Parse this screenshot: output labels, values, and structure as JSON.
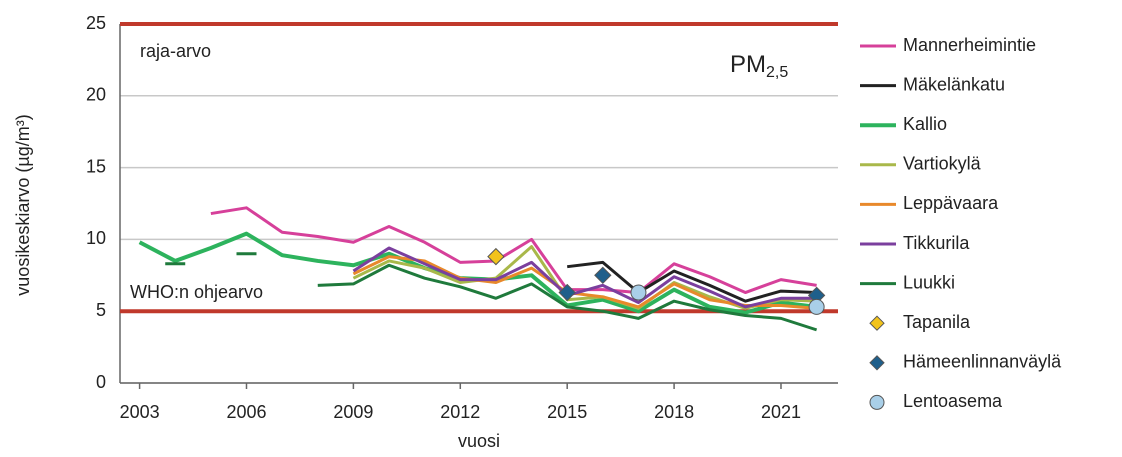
{
  "chart_data": {
    "type": "line",
    "x_label": "vuosi",
    "y_label": "vuosikeskiarvo (µg/m³)",
    "annotation": {
      "text": "PM",
      "subscript": "2,5"
    },
    "reference_lines": [
      {
        "label": "raja-arvo",
        "value": 25,
        "color": "#c0392b"
      },
      {
        "label": "WHO:n ohjearvo",
        "value": 5,
        "color": "#c0392b"
      }
    ],
    "x": [
      2003,
      2004,
      2005,
      2006,
      2007,
      2008,
      2009,
      2010,
      2011,
      2012,
      2013,
      2014,
      2015,
      2016,
      2017,
      2018,
      2019,
      2020,
      2021,
      2022
    ],
    "xlim": [
      2002.45,
      2022.6
    ],
    "xticks": [
      2003,
      2006,
      2009,
      2012,
      2015,
      2018,
      2021
    ],
    "ylim": [
      0,
      25
    ],
    "yticks": [
      0,
      5,
      10,
      15,
      20,
      25
    ],
    "grid": true,
    "legend": "right",
    "series": [
      {
        "name": "Mannerheimintie",
        "color": "#d6409a",
        "line_width": 3,
        "values": [
          null,
          null,
          11.8,
          12.2,
          10.5,
          10.2,
          9.8,
          10.9,
          9.8,
          8.4,
          8.5,
          10.0,
          6.5,
          6.5,
          6.3,
          8.3,
          7.4,
          6.3,
          7.2,
          6.8
        ]
      },
      {
        "name": "Mäkelänkatu",
        "color": "#222222",
        "line_width": 3,
        "values": [
          null,
          null,
          null,
          null,
          null,
          null,
          null,
          null,
          null,
          null,
          null,
          null,
          8.1,
          8.4,
          6.3,
          7.8,
          6.8,
          5.7,
          6.4,
          6.3
        ]
      },
      {
        "name": "Kallio",
        "color": "#2db35d",
        "line_width": 4,
        "values": [
          9.8,
          8.5,
          9.4,
          10.4,
          8.9,
          8.5,
          8.2,
          9.0,
          8.0,
          7.3,
          7.2,
          7.5,
          5.4,
          5.8,
          5.0,
          6.5,
          5.3,
          4.9,
          5.6,
          5.3
        ]
      },
      {
        "name": "Vartiokylä",
        "color": "#a9b84a",
        "line_width": 3,
        "values": [
          null,
          null,
          null,
          null,
          null,
          null,
          7.3,
          8.5,
          8.0,
          7.0,
          7.3,
          9.5,
          5.8,
          6.0,
          5.2,
          7.0,
          6.0,
          5.2,
          5.8,
          5.7
        ]
      },
      {
        "name": "Leppävaara",
        "color": "#e8892b",
        "line_width": 3,
        "values": [
          null,
          null,
          null,
          null,
          null,
          null,
          7.6,
          8.8,
          8.5,
          7.3,
          7.0,
          8.0,
          6.3,
          6.0,
          5.3,
          6.9,
          5.8,
          5.4,
          5.4,
          5.2
        ]
      },
      {
        "name": "Tikkurila",
        "color": "#7b3f9e",
        "line_width": 3,
        "values": [
          null,
          null,
          null,
          null,
          null,
          null,
          7.8,
          9.4,
          8.3,
          7.2,
          7.2,
          8.4,
          6.1,
          6.8,
          5.6,
          7.4,
          6.4,
          5.3,
          5.9,
          5.9
        ]
      },
      {
        "name": "Luukki",
        "color": "#1f7a3c",
        "line_width": 3,
        "values": [
          null,
          8.3,
          null,
          9.0,
          null,
          6.8,
          6.9,
          8.2,
          7.3,
          6.7,
          5.9,
          6.9,
          5.3,
          5.0,
          4.5,
          5.7,
          5.1,
          4.7,
          4.5,
          3.7
        ]
      },
      {
        "name": "Tapanila",
        "color": "#f2c31b",
        "marker": "diamond",
        "values": [
          null,
          null,
          null,
          null,
          null,
          null,
          null,
          null,
          null,
          null,
          8.8,
          null,
          null,
          null,
          null,
          null,
          null,
          null,
          null,
          null
        ]
      },
      {
        "name": "Hämeenlinnanväylä",
        "color": "#1f5f8b",
        "marker": "diamond",
        "values": [
          null,
          null,
          null,
          null,
          null,
          null,
          null,
          null,
          null,
          null,
          null,
          null,
          6.3,
          7.5,
          null,
          null,
          null,
          null,
          null,
          6.1
        ]
      },
      {
        "name": "Lentoasema",
        "color": "#a9cfe8",
        "marker": "circle",
        "values": [
          null,
          null,
          null,
          null,
          null,
          null,
          null,
          null,
          null,
          null,
          null,
          null,
          null,
          null,
          6.3,
          null,
          null,
          null,
          null,
          5.3
        ]
      }
    ]
  }
}
